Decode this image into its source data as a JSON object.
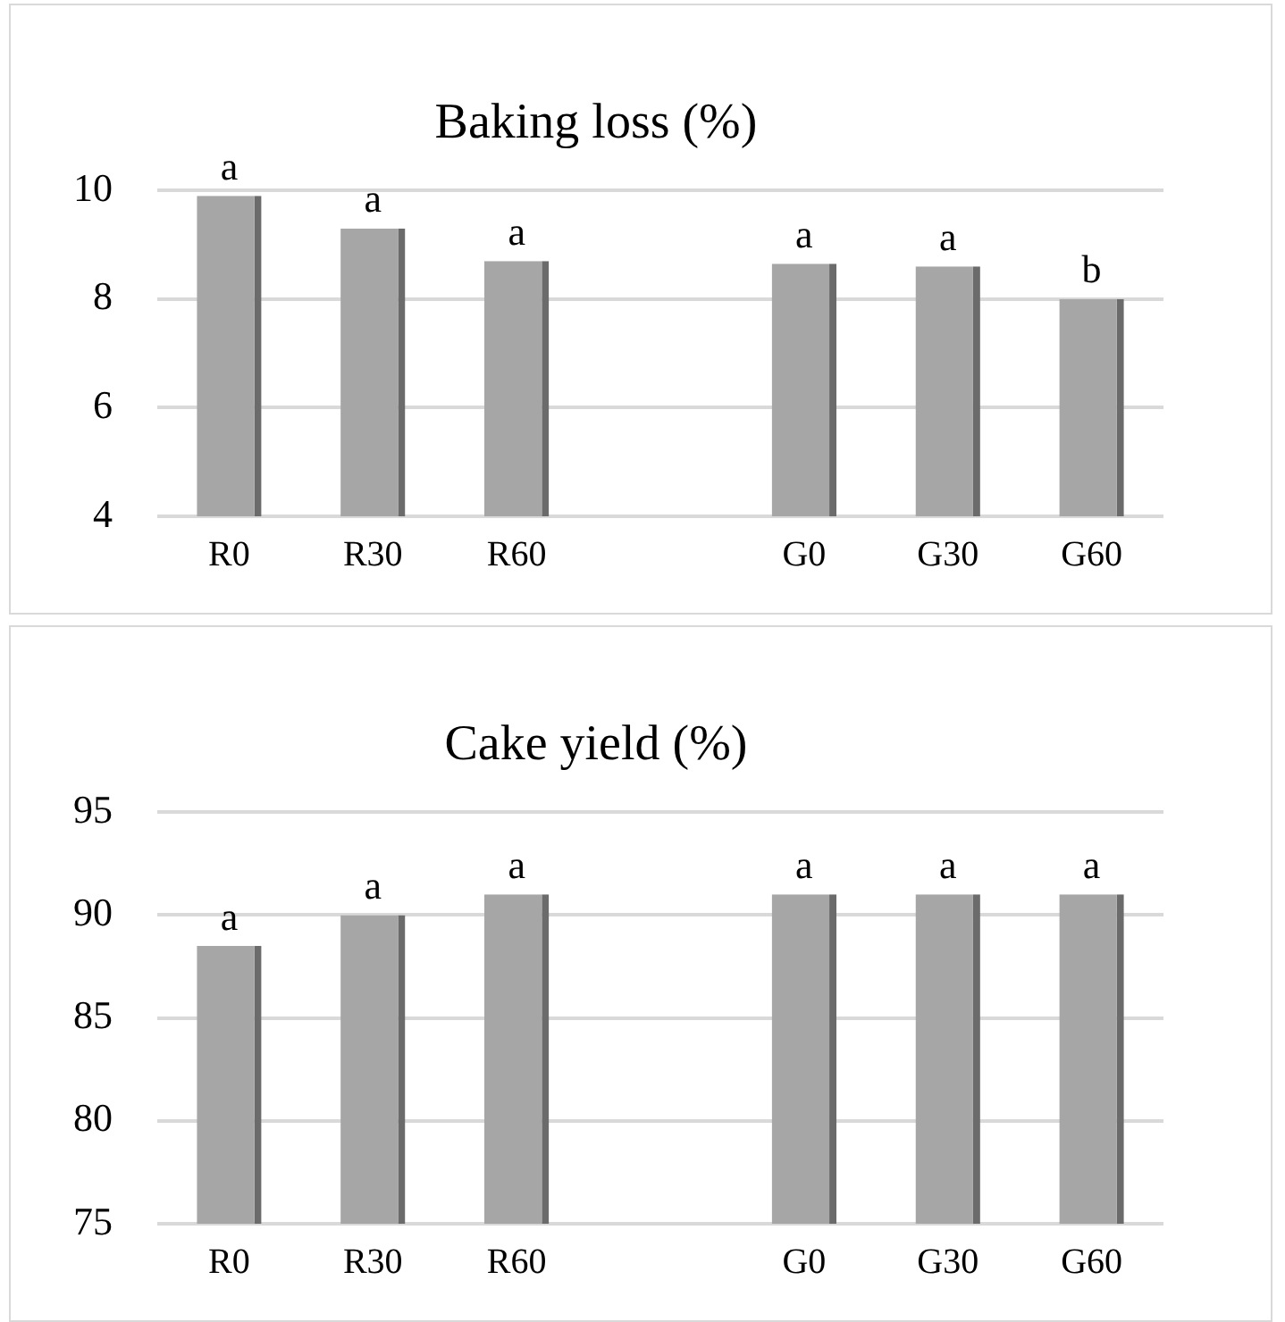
{
  "chart_data": [
    {
      "type": "bar",
      "title": "Baking loss (%)",
      "categories": [
        "R0",
        "R30",
        "R60",
        null,
        "G0",
        "G30",
        "G60"
      ],
      "values": [
        9.9,
        9.3,
        8.7,
        null,
        8.65,
        8.6,
        8.0
      ],
      "color": "#a6a6a6",
      "ylim": [
        4,
        10
      ],
      "yticks": [
        4,
        6,
        8,
        10
      ],
      "grid": "y",
      "annotations": [
        {
          "text": "a",
          "x": "R0",
          "y": 9.9
        },
        {
          "text": "a",
          "x": "R30",
          "y": 9.3
        },
        {
          "text": "a",
          "x": "R60",
          "y": 8.7
        },
        {
          "text": "a",
          "x": "G0",
          "y": 8.65
        },
        {
          "text": "a",
          "x": "G30",
          "y": 8.6
        },
        {
          "text": "b",
          "x": "G60",
          "y": 8.0
        }
      ]
    },
    {
      "type": "bar",
      "title": "Cake yield (%)",
      "categories": [
        "R0",
        "R30",
        "R60",
        null,
        "G0",
        "G30",
        "G60"
      ],
      "values": [
        88.5,
        90,
        91,
        null,
        91,
        91,
        91
      ],
      "color": "#a6a6a6",
      "ylim": [
        75,
        95
      ],
      "yticks": [
        75,
        80,
        85,
        90,
        95
      ],
      "grid": "y",
      "annotations": [
        {
          "text": "a",
          "x": "R0",
          "y": 88.5
        },
        {
          "text": "a",
          "x": "R30",
          "y": 90
        },
        {
          "text": "a",
          "x": "R60",
          "y": 91
        },
        {
          "text": "a",
          "x": "G0",
          "y": 91
        },
        {
          "text": "a",
          "x": "G30",
          "y": 91
        },
        {
          "text": "a",
          "x": "G60",
          "y": 91
        }
      ]
    }
  ]
}
